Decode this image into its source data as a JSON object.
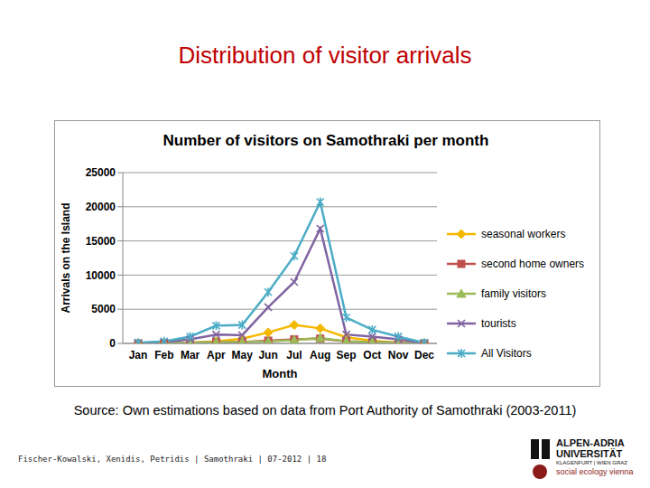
{
  "slide_title": "Distribution of visitor arrivals",
  "chart_data": {
    "type": "line",
    "title": "Number of visitors on Samothraki per month",
    "x_label": "Month",
    "y_label": "Arrivals on the Island",
    "categories": [
      "Jan",
      "Feb",
      "Mar",
      "Apr",
      "May",
      "Jun",
      "Jul",
      "Aug",
      "Sep",
      "Oct",
      "Nov",
      "Dec"
    ],
    "series": [
      {
        "name": "seasonal workers",
        "color": "#f5b800",
        "marker": "diamond",
        "values": [
          0,
          50,
          100,
          300,
          700,
          1600,
          2700,
          2200,
          900,
          400,
          100,
          0
        ]
      },
      {
        "name": "second home owners",
        "color": "#c0504d",
        "marker": "square",
        "values": [
          0,
          50,
          100,
          200,
          200,
          400,
          600,
          700,
          300,
          200,
          100,
          0
        ]
      },
      {
        "name": "family visitors",
        "color": "#9bbb59",
        "marker": "triangle",
        "values": [
          0,
          50,
          100,
          200,
          200,
          300,
          500,
          800,
          300,
          200,
          100,
          0
        ]
      },
      {
        "name": "tourists",
        "color": "#8064a2",
        "marker": "x",
        "values": [
          50,
          200,
          600,
          1300,
          1200,
          5300,
          9000,
          16800,
          1300,
          1000,
          600,
          50
        ]
      },
      {
        "name": "All Visitors",
        "color": "#4bacc6",
        "marker": "star",
        "values": [
          100,
          300,
          1000,
          2600,
          2700,
          7500,
          12800,
          20700,
          3800,
          2000,
          1000,
          100
        ]
      }
    ],
    "ylim": [
      0,
      25000
    ],
    "yticks": [
      0,
      5000,
      10000,
      15000,
      20000,
      25000
    ],
    "grid": true,
    "legend": "right"
  },
  "source": "Source: Own estimations based on data from Port Authority of Samothraki (2003-2011)",
  "footer": "Fischer-Kowalski, Xenidis, Petridis | Samothraki | 07-2012 | 18",
  "logo": {
    "line1": "ALPEN-ADRIA",
    "line2": "UNIVERSITÄT",
    "line3": "KLAGENFURT | WIEN GRAZ",
    "line4": "social ecology vienna"
  }
}
